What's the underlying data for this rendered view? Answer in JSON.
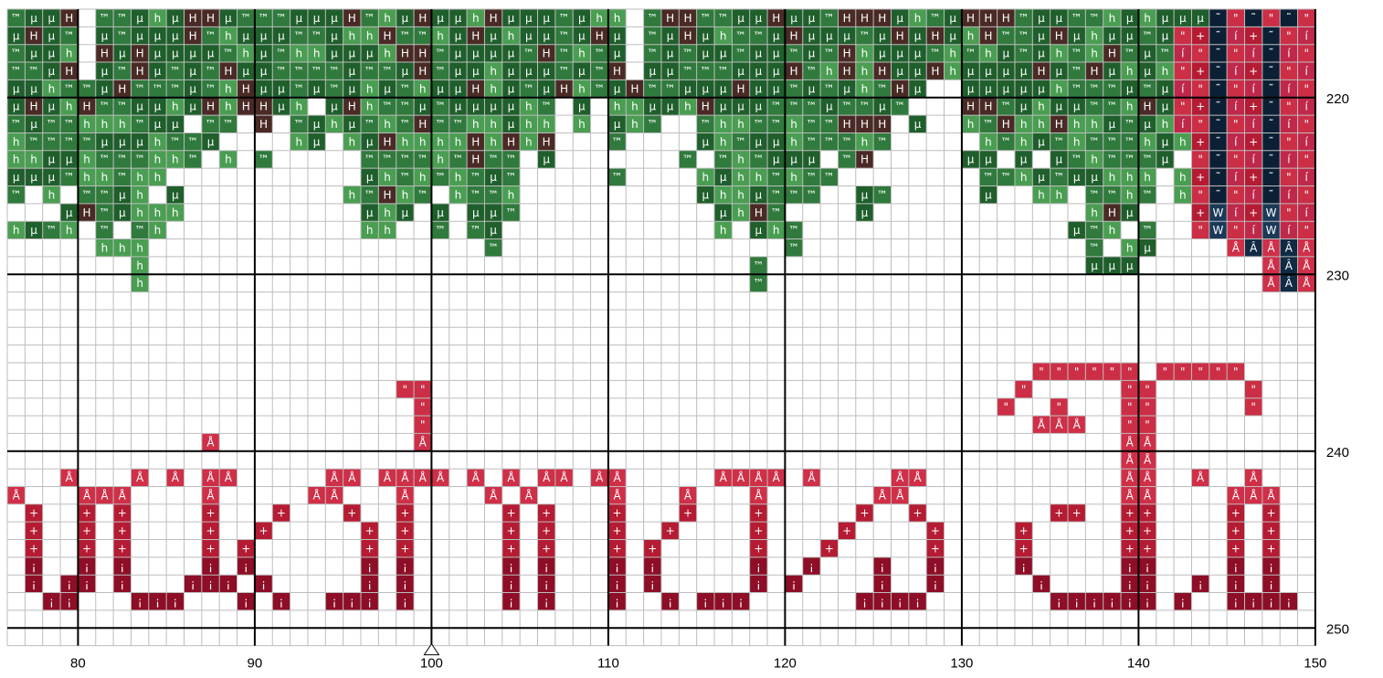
{
  "chart": {
    "col_start": 76,
    "col_end": 150,
    "row_start": 215,
    "row_end": 251,
    "x_labels": [
      "80",
      "90",
      "100",
      "110",
      "120",
      "130",
      "140",
      "150"
    ],
    "y_labels": [
      "220",
      "230",
      "240",
      "250"
    ],
    "center_marker": "100"
  },
  "palette": {
    "h": {
      "bg": "#4a9e52",
      "symbol": "h"
    },
    "tm": {
      "bg": "#2f7a3c",
      "symbol": "™"
    },
    "mu": {
      "bg": "#1f5f2c",
      "symbol": "µ"
    },
    "H": {
      "bg": "#4a2a25",
      "symbol": "H"
    },
    "q": {
      "bg": "#cc2e46",
      "symbol": "\""
    },
    "plus": {
      "bg": "#b51c33",
      "symbol": "+"
    },
    "i": {
      "bg": "#8d0e26",
      "symbol": "¡"
    },
    "A": {
      "bg": "#d02f48",
      "symbol": "Å"
    },
    "r": {
      "bg": "#c0284a",
      "symbol": "í"
    },
    "t": {
      "bg": "#0b2035",
      "symbol": "˜"
    },
    "W": {
      "bg": "#1a3a58",
      "symbol": "W"
    },
    "D": {
      "bg": "#102a44",
      "symbol": "Â"
    }
  }
}
